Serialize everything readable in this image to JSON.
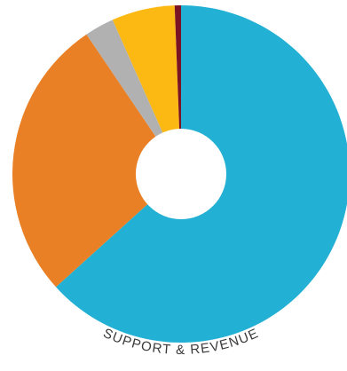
{
  "chart_data": {
    "type": "pie",
    "title": "SUPPORT & REVENUE",
    "donut": true,
    "slices": [
      {
        "value": 62.8,
        "color": "#22b0d4"
      },
      {
        "value": 27.0,
        "color": "#e98025"
      },
      {
        "value": 2.8,
        "color": "#b1b1b1"
      },
      {
        "value": 6.0,
        "color": "#fcb813"
      },
      {
        "value": 0.6,
        "color": "#7a1424"
      }
    ]
  }
}
